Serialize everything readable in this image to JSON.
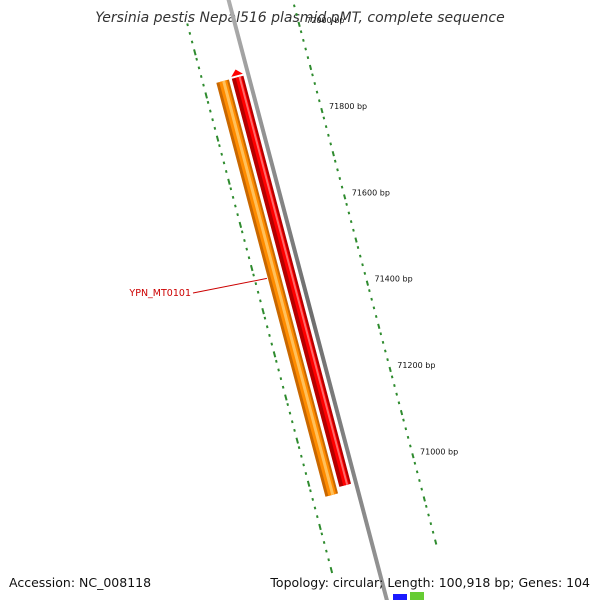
{
  "title": "Yersinia pestis Nepal516 plasmid pMT, complete sequence",
  "accession": "Accession: NC_008118",
  "footer": {
    "topology_label": "Topology:",
    "topology": "circular",
    "length_label": "Length:",
    "length": "100,918 bp",
    "genes_label": "Genes:",
    "genes": "104"
  },
  "bp_ticks": [
    {
      "bp": 72000,
      "label": "72000 bp"
    },
    {
      "bp": 71800,
      "label": "71800 bp"
    },
    {
      "bp": 71600,
      "label": "71600 bp"
    },
    {
      "bp": 71400,
      "label": "71400 bp"
    },
    {
      "bp": 71200,
      "label": "71200 bp"
    },
    {
      "bp": 71000,
      "label": "71000 bp"
    }
  ],
  "genes": [
    {
      "name": "",
      "strand": "forward",
      "color": "#ff0000",
      "color_dark": "#b50000",
      "color_light": "#ff6a6a"
    },
    {
      "name": "YPN_MT0101",
      "strand": "reverse",
      "color": "#ff8c00",
      "color_dark": "#c96800",
      "color_light": "#ffc05a"
    }
  ],
  "colors": {
    "backbone": "#8c8c8c",
    "tick": "#2e8b2e",
    "gene_label": "#cc0000",
    "small_gene_blue": "#1a1aff",
    "small_gene_green": "#66cc33"
  }
}
